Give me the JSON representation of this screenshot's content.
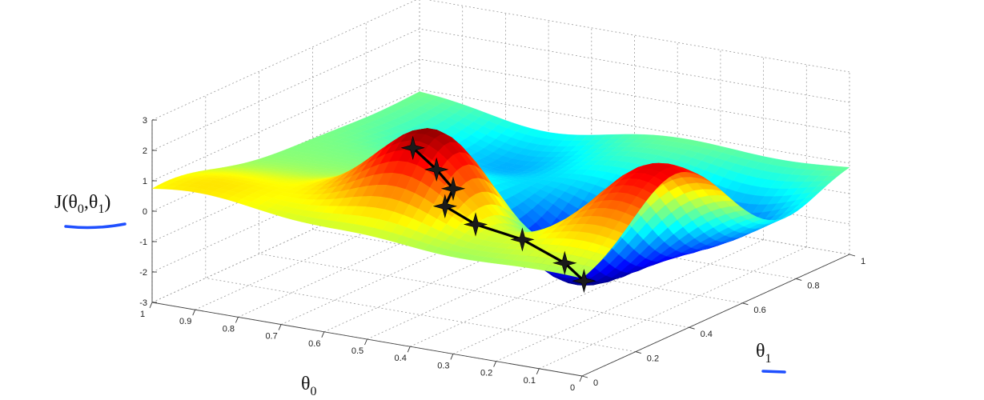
{
  "chart_data": {
    "type": "surface",
    "title": "",
    "xlabel": "θ1",
    "ylabel": "θ0",
    "zlabel": "J(θ0,θ1)",
    "xlabel_parts": {
      "base": "θ",
      "sub": "1"
    },
    "ylabel_parts": {
      "base": "θ",
      "sub": "0"
    },
    "zlabel_parts": {
      "pre": "J(",
      "b1": "θ",
      "s1": "0",
      "comma": ",",
      "b2": "θ",
      "s2": "1",
      "post": ")"
    },
    "xlim": [
      0,
      1
    ],
    "ylim": [
      0,
      1
    ],
    "zlim": [
      -3,
      3
    ],
    "x_ticks": [
      "0",
      "0.2",
      "0.4",
      "0.6",
      "0.8",
      "1"
    ],
    "x_tick_values": [
      0,
      0.2,
      0.4,
      0.6,
      0.8,
      1
    ],
    "y_ticks": [
      "0",
      "0.1",
      "0.2",
      "0.3",
      "0.4",
      "0.5",
      "0.6",
      "0.7",
      "0.8",
      "0.9",
      "1"
    ],
    "y_tick_values": [
      0,
      0.1,
      0.2,
      0.3,
      0.4,
      0.5,
      0.6,
      0.7,
      0.8,
      0.9,
      1
    ],
    "z_ticks": [
      "-3",
      "-2",
      "-1",
      "0",
      "1",
      "2",
      "3"
    ],
    "z_tick_values": [
      -3,
      -2,
      -1,
      0,
      1,
      2,
      3
    ],
    "grid": true,
    "colormap": "jet",
    "surface_bumps": [
      {
        "x": 0.25,
        "y": 0.5,
        "amplitude": 3.0,
        "spread": 0.12
      },
      {
        "x": 0.35,
        "y": 0.1,
        "amplitude": 2.9,
        "spread": 0.16
      },
      {
        "x": 0.55,
        "y": 0.35,
        "amplitude": -3.3,
        "spread": 0.14
      },
      {
        "x": 0.3,
        "y": 0.25,
        "amplitude": -1.8,
        "spread": 0.1
      },
      {
        "x": 0.85,
        "y": 0.7,
        "amplitude": -1.2,
        "spread": 0.14
      },
      {
        "x": 0.75,
        "y": 0.15,
        "amplitude": -1.7,
        "spread": 0.13
      },
      {
        "x": 0.05,
        "y": 0.9,
        "amplitude": 0.9,
        "spread": 0.18
      }
    ],
    "descent_path": [
      {
        "x": 0.3,
        "y": 0.58,
        "z": 1.9
      },
      {
        "x": 0.34,
        "y": 0.55,
        "z": 1.1
      },
      {
        "x": 0.37,
        "y": 0.53,
        "z": 0.4
      },
      {
        "x": 0.42,
        "y": 0.58,
        "z": -0.5
      },
      {
        "x": 0.47,
        "y": 0.54,
        "z": -1.2
      },
      {
        "x": 0.5,
        "y": 0.45,
        "z": -1.6
      },
      {
        "x": 0.53,
        "y": 0.37,
        "z": -2.3
      },
      {
        "x": 0.57,
        "y": 0.35,
        "z": -3.0
      }
    ],
    "annotation_color": "#1f4fff"
  }
}
